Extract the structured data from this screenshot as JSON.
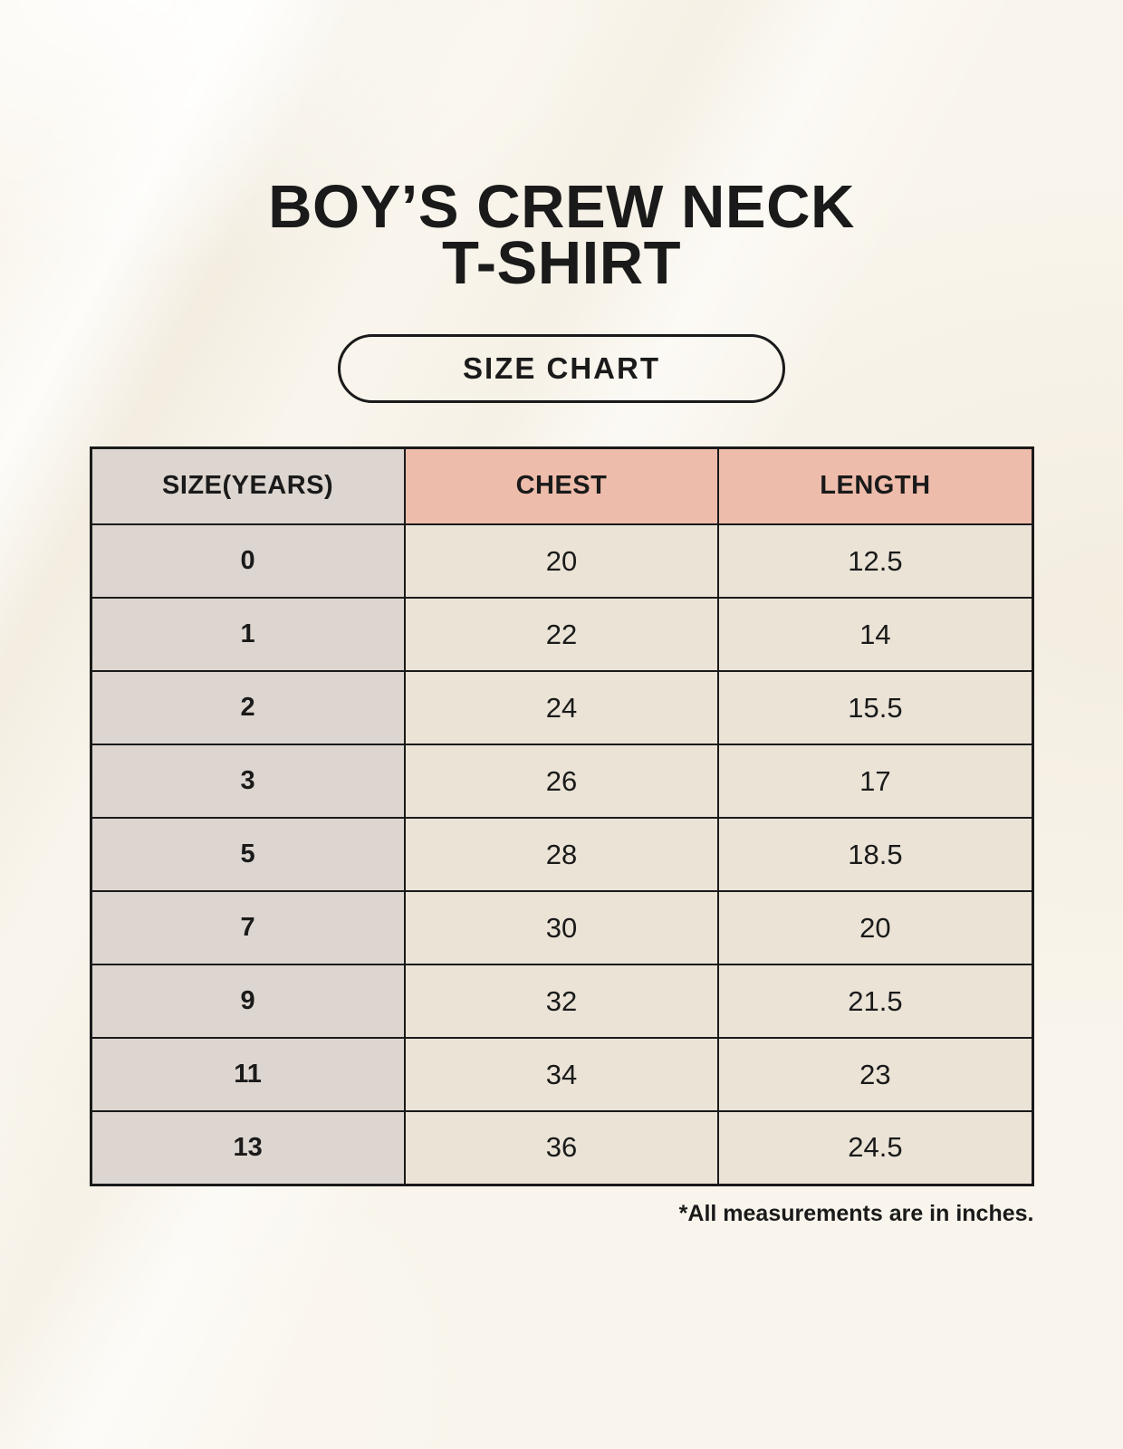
{
  "header": {
    "title_line1": "BOY’S CREW NECK",
    "title_line2": "T-SHIRT",
    "size_chart_label": "SIZE CHART"
  },
  "chart_data": {
    "type": "table",
    "title": "BOY’S CREW NECK T-SHIRT",
    "subtitle": "SIZE CHART",
    "columns": [
      "SIZE(YEARS)",
      "CHEST",
      "LENGTH"
    ],
    "rows": [
      [
        "0",
        "20",
        "12.5"
      ],
      [
        "1",
        "22",
        "14"
      ],
      [
        "2",
        "24",
        "15.5"
      ],
      [
        "3",
        "26",
        "17"
      ],
      [
        "5",
        "28",
        "18.5"
      ],
      [
        "7",
        "30",
        "20"
      ],
      [
        "9",
        "32",
        "21.5"
      ],
      [
        "11",
        "34",
        "23"
      ],
      [
        "13",
        "36",
        "24.5"
      ]
    ],
    "units": "inches"
  },
  "footer": {
    "note": "*All measurements are in inches."
  },
  "colors": {
    "page_background": "#f9f5ec",
    "header_accent": "#eebcab",
    "size_column": "#ddd5cf",
    "data_cell": "#eae3d6",
    "border": "#1a1a1a",
    "text": "#1a1a1a"
  }
}
